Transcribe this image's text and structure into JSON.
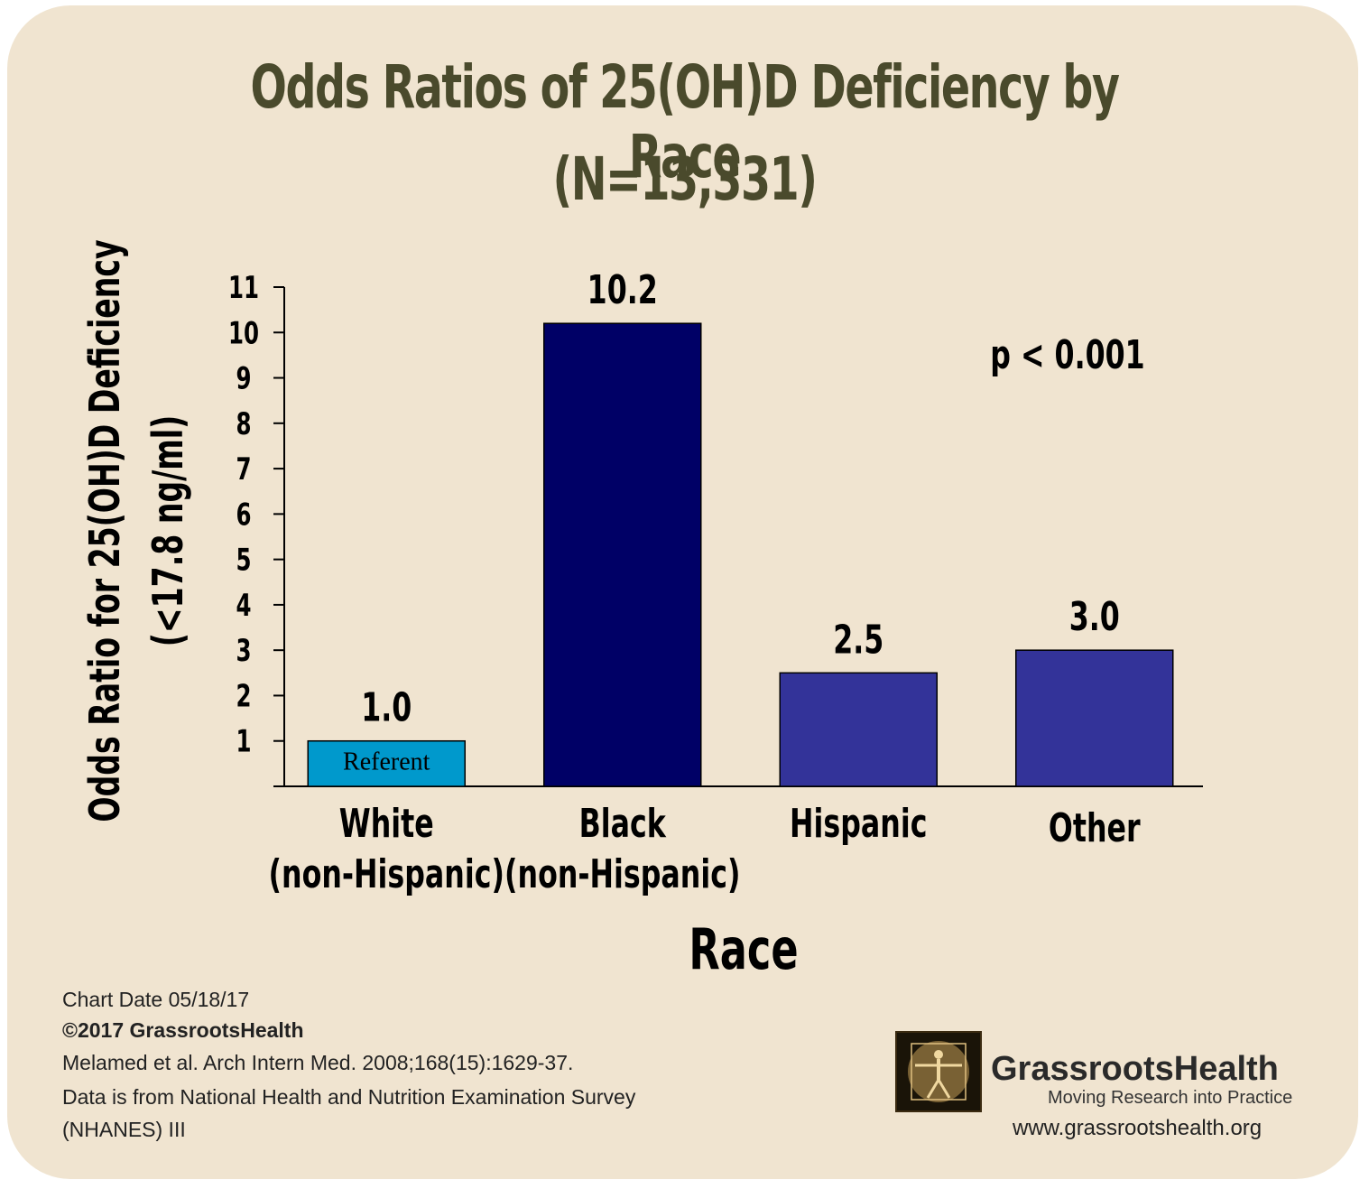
{
  "title_line1": "Odds Ratios of 25(OH)D Deficiency by Race",
  "title_line2": "(N=13,331)",
  "chart_data": {
    "type": "bar",
    "categories": [
      [
        "White",
        "(non-Hispanic)"
      ],
      [
        "Black",
        "(non-Hispanic)"
      ],
      [
        "Hispanic"
      ],
      [
        "Other"
      ]
    ],
    "values": [
      1.0,
      10.2,
      2.5,
      3.0
    ],
    "value_labels": [
      "1.0",
      "10.2",
      "2.5",
      "3.0"
    ],
    "colors": [
      "#0099cc",
      "#000066",
      "#333399",
      "#333399"
    ],
    "bar_inner_labels": [
      "Referent",
      "",
      "",
      ""
    ],
    "xlabel": "Race",
    "ylabel": [
      "Odds Ratio for 25(OH)D Deficiency",
      "(<17.8 ng/ml)"
    ],
    "ylim": [
      0,
      11
    ],
    "yticks": [
      1,
      2,
      3,
      4,
      5,
      6,
      7,
      8,
      9,
      10,
      11
    ],
    "annotation": "p < 0.001",
    "grid": false
  },
  "footer": {
    "chart_date": "Chart Date 05/18/17",
    "copyright": "©2017 GrassrootsHealth",
    "citation": "Melamed et al. Arch Intern Med. 2008;168(15):1629-37.",
    "source_line1": "Data is from National Health and Nutrition Examination Survey",
    "source_line2": "(NHANES) III"
  },
  "logo": {
    "name": "GrassrootsHealth",
    "tagline": "Moving Research into Practice",
    "url": "www.grassrootshealth.org"
  }
}
